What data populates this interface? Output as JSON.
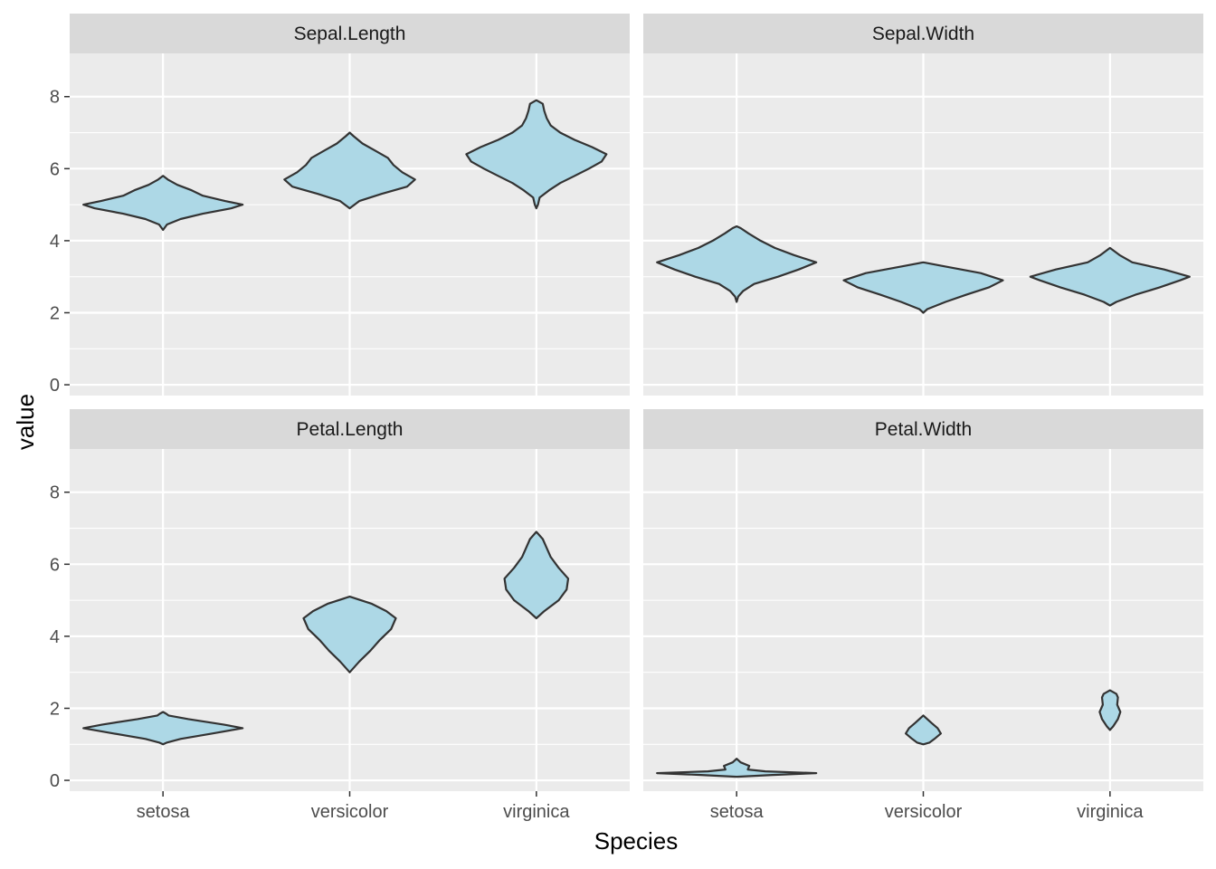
{
  "chart_data": {
    "type": "violin",
    "facets": [
      "Sepal.Length",
      "Sepal.Width",
      "Petal.Length",
      "Petal.Width"
    ],
    "categories": [
      "setosa",
      "versicolor",
      "virginica"
    ],
    "xlabel": "Species",
    "ylabel": "value",
    "ylim": [
      -0.3,
      9.2
    ],
    "yticks": [
      "0",
      "2",
      "4",
      "6",
      "8"
    ],
    "facet_layout": "2x2",
    "fill_color": "#add8e6",
    "outline_color": "#333333",
    "panel_background": "#ebebeb",
    "strip_background": "#d9d9d9",
    "grid": true,
    "legend": "none",
    "violins": [
      {
        "facet": "Sepal.Length",
        "species": "setosa",
        "range": [
          4.3,
          5.8
        ],
        "profile": [
          [
            4.3,
            0.0
          ],
          [
            4.45,
            0.05
          ],
          [
            4.6,
            0.22
          ],
          [
            4.75,
            0.5
          ],
          [
            4.9,
            0.86
          ],
          [
            5.0,
            1.0
          ],
          [
            5.1,
            0.78
          ],
          [
            5.25,
            0.5
          ],
          [
            5.4,
            0.36
          ],
          [
            5.55,
            0.18
          ],
          [
            5.7,
            0.06
          ],
          [
            5.8,
            0.0
          ]
        ]
      },
      {
        "facet": "Sepal.Length",
        "species": "versicolor",
        "range": [
          4.9,
          7.0
        ],
        "profile": [
          [
            4.9,
            0.0
          ],
          [
            5.1,
            0.12
          ],
          [
            5.3,
            0.4
          ],
          [
            5.5,
            0.72
          ],
          [
            5.7,
            0.82
          ],
          [
            5.9,
            0.66
          ],
          [
            6.1,
            0.55
          ],
          [
            6.3,
            0.48
          ],
          [
            6.5,
            0.32
          ],
          [
            6.7,
            0.16
          ],
          [
            6.9,
            0.05
          ],
          [
            7.0,
            0.0
          ]
        ]
      },
      {
        "facet": "Sepal.Length",
        "species": "virginica",
        "range": [
          4.9,
          7.9
        ],
        "profile": [
          [
            4.9,
            0.0
          ],
          [
            5.0,
            0.02
          ],
          [
            5.2,
            0.04
          ],
          [
            5.4,
            0.16
          ],
          [
            5.6,
            0.3
          ],
          [
            5.8,
            0.48
          ],
          [
            6.0,
            0.66
          ],
          [
            6.2,
            0.82
          ],
          [
            6.4,
            0.88
          ],
          [
            6.6,
            0.7
          ],
          [
            6.8,
            0.48
          ],
          [
            7.0,
            0.3
          ],
          [
            7.2,
            0.18
          ],
          [
            7.4,
            0.13
          ],
          [
            7.6,
            0.1
          ],
          [
            7.8,
            0.08
          ],
          [
            7.9,
            0.0
          ]
        ]
      },
      {
        "facet": "Sepal.Width",
        "species": "setosa",
        "range": [
          2.3,
          4.4
        ],
        "profile": [
          [
            2.3,
            0.0
          ],
          [
            2.45,
            0.02
          ],
          [
            2.6,
            0.08
          ],
          [
            2.8,
            0.22
          ],
          [
            3.0,
            0.52
          ],
          [
            3.2,
            0.78
          ],
          [
            3.4,
            1.0
          ],
          [
            3.6,
            0.72
          ],
          [
            3.8,
            0.48
          ],
          [
            4.0,
            0.3
          ],
          [
            4.2,
            0.15
          ],
          [
            4.35,
            0.05
          ],
          [
            4.4,
            0.0
          ]
        ]
      },
      {
        "facet": "Sepal.Width",
        "species": "versicolor",
        "range": [
          2.0,
          3.4
        ],
        "profile": [
          [
            2.0,
            0.0
          ],
          [
            2.1,
            0.05
          ],
          [
            2.3,
            0.28
          ],
          [
            2.5,
            0.54
          ],
          [
            2.7,
            0.82
          ],
          [
            2.9,
            1.0
          ],
          [
            3.1,
            0.72
          ],
          [
            3.3,
            0.24
          ],
          [
            3.4,
            0.0
          ]
        ]
      },
      {
        "facet": "Sepal.Width",
        "species": "virginica",
        "range": [
          2.2,
          3.8
        ],
        "profile": [
          [
            2.2,
            0.0
          ],
          [
            2.3,
            0.08
          ],
          [
            2.5,
            0.32
          ],
          [
            2.7,
            0.62
          ],
          [
            2.9,
            0.88
          ],
          [
            3.0,
            1.0
          ],
          [
            3.2,
            0.68
          ],
          [
            3.4,
            0.28
          ],
          [
            3.6,
            0.12
          ],
          [
            3.8,
            0.0
          ]
        ]
      },
      {
        "facet": "Petal.Length",
        "species": "setosa",
        "range": [
          1.0,
          1.9
        ],
        "profile": [
          [
            1.0,
            0.0
          ],
          [
            1.05,
            0.05
          ],
          [
            1.15,
            0.22
          ],
          [
            1.3,
            0.62
          ],
          [
            1.45,
            1.0
          ],
          [
            1.55,
            0.76
          ],
          [
            1.7,
            0.32
          ],
          [
            1.8,
            0.07
          ],
          [
            1.85,
            0.04
          ],
          [
            1.9,
            0.0
          ]
        ]
      },
      {
        "facet": "Petal.Length",
        "species": "versicolor",
        "range": [
          3.0,
          5.1
        ],
        "profile": [
          [
            3.0,
            0.0
          ],
          [
            3.3,
            0.12
          ],
          [
            3.6,
            0.26
          ],
          [
            3.9,
            0.38
          ],
          [
            4.2,
            0.52
          ],
          [
            4.5,
            0.58
          ],
          [
            4.7,
            0.46
          ],
          [
            4.9,
            0.28
          ],
          [
            5.1,
            0.0
          ]
        ]
      },
      {
        "facet": "Petal.Length",
        "species": "virginica",
        "range": [
          4.5,
          6.9
        ],
        "profile": [
          [
            4.5,
            0.0
          ],
          [
            4.7,
            0.1
          ],
          [
            5.0,
            0.28
          ],
          [
            5.3,
            0.38
          ],
          [
            5.6,
            0.4
          ],
          [
            5.9,
            0.28
          ],
          [
            6.2,
            0.18
          ],
          [
            6.5,
            0.12
          ],
          [
            6.7,
            0.08
          ],
          [
            6.9,
            0.0
          ]
        ]
      },
      {
        "facet": "Petal.Width",
        "species": "setosa",
        "range": [
          0.1,
          0.6
        ],
        "profile": [
          [
            0.1,
            0.0
          ],
          [
            0.15,
            0.45
          ],
          [
            0.2,
            1.0
          ],
          [
            0.25,
            0.36
          ],
          [
            0.3,
            0.14
          ],
          [
            0.4,
            0.16
          ],
          [
            0.5,
            0.05
          ],
          [
            0.6,
            0.0
          ]
        ]
      },
      {
        "facet": "Petal.Width",
        "species": "versicolor",
        "range": [
          1.0,
          1.8
        ],
        "profile": [
          [
            1.0,
            0.0
          ],
          [
            1.05,
            0.08
          ],
          [
            1.15,
            0.14
          ],
          [
            1.3,
            0.22
          ],
          [
            1.45,
            0.18
          ],
          [
            1.6,
            0.1
          ],
          [
            1.7,
            0.05
          ],
          [
            1.8,
            0.0
          ]
        ]
      },
      {
        "facet": "Petal.Width",
        "species": "virginica",
        "range": [
          1.4,
          2.5
        ],
        "profile": [
          [
            1.4,
            0.0
          ],
          [
            1.5,
            0.04
          ],
          [
            1.7,
            0.1
          ],
          [
            1.9,
            0.13
          ],
          [
            2.1,
            0.09
          ],
          [
            2.3,
            0.1
          ],
          [
            2.4,
            0.08
          ],
          [
            2.5,
            0.0
          ]
        ]
      }
    ]
  }
}
